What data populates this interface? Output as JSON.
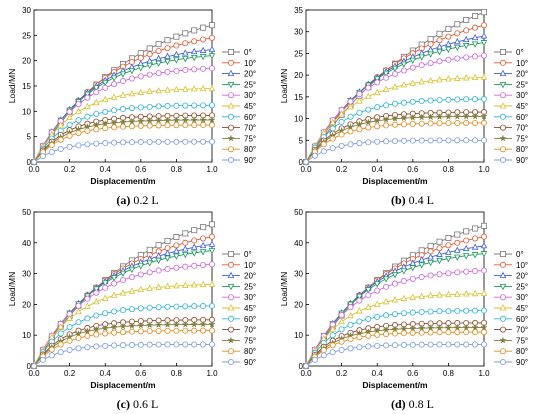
{
  "panels": [
    {
      "caption_letter": "(a)",
      "caption_text": "0.2 L",
      "chart_data": {
        "type": "line",
        "xlabel": "Displacement/m",
        "ylabel": "Load/MN",
        "xlim": [
          0,
          1.0
        ],
        "ylim": [
          0,
          30
        ],
        "xticks": [
          0.0,
          0.2,
          0.4,
          0.6,
          0.8,
          1.0
        ],
        "yticks": [
          0,
          5,
          10,
          15,
          20,
          25,
          30
        ],
        "grid": false,
        "legend_position": "right",
        "x": [
          0,
          0.05,
          0.1,
          0.15,
          0.2,
          0.25,
          0.3,
          0.35,
          0.4,
          0.45,
          0.5,
          0.55,
          0.6,
          0.65,
          0.7,
          0.75,
          0.8,
          0.85,
          0.9,
          0.95,
          1.0
        ],
        "series": [
          {
            "name": "0°",
            "ultimate": 27.0
          },
          {
            "name": "10°",
            "ultimate": 24.5
          },
          {
            "name": "20°",
            "ultimate": 22.2
          },
          {
            "name": "25°",
            "ultimate": 21.0
          },
          {
            "name": "30°",
            "ultimate": 18.5
          },
          {
            "name": "45°",
            "ultimate": 14.5
          },
          {
            "name": "60°",
            "ultimate": 11.2
          },
          {
            "name": "70°",
            "ultimate": 9.2
          },
          {
            "name": "75°",
            "ultimate": 8.3
          },
          {
            "name": "80°",
            "ultimate": 7.3
          },
          {
            "name": "90°",
            "ultimate": 4.0
          }
        ]
      }
    },
    {
      "caption_letter": "(b)",
      "caption_text": "0.4 L",
      "chart_data": {
        "type": "line",
        "xlabel": "Displacement/m",
        "ylabel": "Load/MN",
        "xlim": [
          0,
          1.0
        ],
        "ylim": [
          0,
          35
        ],
        "xticks": [
          0.0,
          0.2,
          0.4,
          0.6,
          0.8,
          1.0
        ],
        "yticks": [
          0,
          5,
          10,
          15,
          20,
          25,
          30,
          35
        ],
        "grid": false,
        "legend_position": "right",
        "x": [
          0,
          0.05,
          0.1,
          0.15,
          0.2,
          0.25,
          0.3,
          0.35,
          0.4,
          0.45,
          0.5,
          0.55,
          0.6,
          0.65,
          0.7,
          0.75,
          0.8,
          0.85,
          0.9,
          0.95,
          1.0
        ],
        "series": [
          {
            "name": "0°",
            "ultimate": 34.5
          },
          {
            "name": "10°",
            "ultimate": 31.5
          },
          {
            "name": "20°",
            "ultimate": 29.0
          },
          {
            "name": "25°",
            "ultimate": 27.5
          },
          {
            "name": "30°",
            "ultimate": 24.5
          },
          {
            "name": "45°",
            "ultimate": 19.5
          },
          {
            "name": "60°",
            "ultimate": 14.5
          },
          {
            "name": "70°",
            "ultimate": 11.5
          },
          {
            "name": "75°",
            "ultimate": 10.5
          },
          {
            "name": "80°",
            "ultimate": 9.0
          },
          {
            "name": "90°",
            "ultimate": 5.0
          }
        ]
      }
    },
    {
      "caption_letter": "(c)",
      "caption_text": "0.6 L",
      "chart_data": {
        "type": "line",
        "xlabel": "Displacement/m",
        "ylabel": "Load/MN",
        "xlim": [
          0,
          1.0
        ],
        "ylim": [
          0,
          50
        ],
        "xticks": [
          0.0,
          0.2,
          0.4,
          0.6,
          0.8,
          1.0
        ],
        "yticks": [
          0,
          10,
          20,
          30,
          40,
          50
        ],
        "grid": false,
        "legend_position": "right",
        "x": [
          0,
          0.05,
          0.1,
          0.15,
          0.2,
          0.25,
          0.3,
          0.35,
          0.4,
          0.45,
          0.5,
          0.55,
          0.6,
          0.65,
          0.7,
          0.75,
          0.8,
          0.85,
          0.9,
          0.95,
          1.0
        ],
        "series": [
          {
            "name": "0°",
            "ultimate": 46.0
          },
          {
            "name": "10°",
            "ultimate": 42.0
          },
          {
            "name": "20°",
            "ultimate": 39.5
          },
          {
            "name": "25°",
            "ultimate": 37.5
          },
          {
            "name": "30°",
            "ultimate": 33.0
          },
          {
            "name": "45°",
            "ultimate": 26.5
          },
          {
            "name": "60°",
            "ultimate": 19.5
          },
          {
            "name": "70°",
            "ultimate": 15.0
          },
          {
            "name": "75°",
            "ultimate": 13.5
          },
          {
            "name": "80°",
            "ultimate": 11.5
          },
          {
            "name": "90°",
            "ultimate": 7.0
          }
        ]
      }
    },
    {
      "caption_letter": "(d)",
      "caption_text": "0.8 L",
      "chart_data": {
        "type": "line",
        "xlabel": "Displacement/m",
        "ylabel": "Load/MN",
        "xlim": [
          0,
          1.0
        ],
        "ylim": [
          0,
          50
        ],
        "xticks": [
          0.0,
          0.2,
          0.4,
          0.6,
          0.8,
          1.0
        ],
        "yticks": [
          0,
          10,
          20,
          30,
          40,
          50
        ],
        "grid": false,
        "legend_position": "right",
        "x": [
          0,
          0.05,
          0.1,
          0.15,
          0.2,
          0.25,
          0.3,
          0.35,
          0.4,
          0.45,
          0.5,
          0.55,
          0.6,
          0.65,
          0.7,
          0.75,
          0.8,
          0.85,
          0.9,
          0.95,
          1.0
        ],
        "series": [
          {
            "name": "0°",
            "ultimate": 45.5
          },
          {
            "name": "10°",
            "ultimate": 42.0
          },
          {
            "name": "20°",
            "ultimate": 39.0
          },
          {
            "name": "25°",
            "ultimate": 36.5
          },
          {
            "name": "30°",
            "ultimate": 31.0
          },
          {
            "name": "45°",
            "ultimate": 23.5
          },
          {
            "name": "60°",
            "ultimate": 18.0
          },
          {
            "name": "70°",
            "ultimate": 14.0
          },
          {
            "name": "75°",
            "ultimate": 12.5
          },
          {
            "name": "80°",
            "ultimate": 11.0
          },
          {
            "name": "90°",
            "ultimate": 7.0
          }
        ]
      }
    }
  ],
  "series_style": [
    {
      "color": "#7a7a7a",
      "marker": "square"
    },
    {
      "color": "#e4572e",
      "marker": "circle"
    },
    {
      "color": "#3d5ee1",
      "marker": "triangle"
    },
    {
      "color": "#1d9a5b",
      "marker": "triangle-down"
    },
    {
      "color": "#cc66dd",
      "marker": "circle"
    },
    {
      "color": "#d9c22e",
      "marker": "triangle"
    },
    {
      "color": "#2fb3d6",
      "marker": "circle"
    },
    {
      "color": "#8b4a2b",
      "marker": "circle"
    },
    {
      "color": "#7e7e3e",
      "marker": "star"
    },
    {
      "color": "#e08a1e",
      "marker": "circle"
    },
    {
      "color": "#7b9be6",
      "marker": "circle"
    }
  ]
}
